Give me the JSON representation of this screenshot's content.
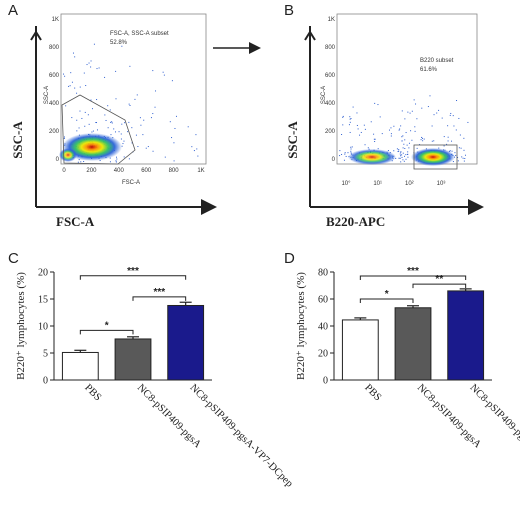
{
  "panels": {
    "A": {
      "letter": "A",
      "gate_label": "FSC-A, SSC-A subset",
      "gate_percent": "52.8%",
      "inner_ylabel": "SSC-A",
      "inner_xlabel": "FSC-A",
      "outer_ylabel": "SSC-A",
      "outer_xlabel": "FSC-A",
      "yticks": [
        "1K",
        "800",
        "600",
        "400",
        "200",
        "0"
      ],
      "xticks": [
        "0",
        "200",
        "400",
        "600",
        "800",
        "1K"
      ]
    },
    "B": {
      "letter": "B",
      "gate_label": "B220 subset",
      "gate_percent": "61.6%",
      "inner_ylabel": "SSC-A",
      "outer_ylabel": "SSC-A",
      "outer_xlabel": "B220-APC",
      "yticks": [
        "1K",
        "800",
        "600",
        "400",
        "200",
        "0"
      ],
      "xticks": [
        "10°",
        "10¹",
        "10²",
        "10³"
      ]
    },
    "C": {
      "letter": "C"
    },
    "D": {
      "letter": "D"
    }
  },
  "chart_data": [
    {
      "type": "bar",
      "panel": "C",
      "categories": [
        "PBS",
        "NC8-pSIP409-pgsA",
        "NC8-pSIP409-pgsA-VP7-DCpep"
      ],
      "values": [
        5.1,
        7.6,
        13.8
      ],
      "errors": [
        0.4,
        0.4,
        0.6
      ],
      "colors": [
        "#ffffff",
        "#595959",
        "#1a1a8c"
      ],
      "ylabel": "B220⁺ lymphocytes (%)",
      "ylim": [
        0,
        20
      ],
      "yticks": [
        0,
        5,
        10,
        15,
        20
      ],
      "significance": [
        {
          "from": 0,
          "to": 1,
          "label": "*"
        },
        {
          "from": 0,
          "to": 2,
          "label": "***"
        },
        {
          "from": 1,
          "to": 2,
          "label": "***"
        }
      ]
    },
    {
      "type": "bar",
      "panel": "D",
      "categories": [
        "PBS",
        "NC8-pSIP409-pgsA",
        "NC8-pSIP409-pgsA-VP7-DCpep"
      ],
      "values": [
        44.5,
        53.5,
        66.0
      ],
      "errors": [
        1.5,
        1.5,
        1.5
      ],
      "colors": [
        "#ffffff",
        "#595959",
        "#1a1a8c"
      ],
      "ylabel": "B220⁺ lymphocytes (%)",
      "ylim": [
        0,
        80
      ],
      "yticks": [
        0,
        20,
        40,
        60,
        80
      ],
      "significance": [
        {
          "from": 0,
          "to": 1,
          "label": "*"
        },
        {
          "from": 0,
          "to": 2,
          "label": "***"
        },
        {
          "from": 1,
          "to": 2,
          "label": "**"
        }
      ]
    }
  ]
}
